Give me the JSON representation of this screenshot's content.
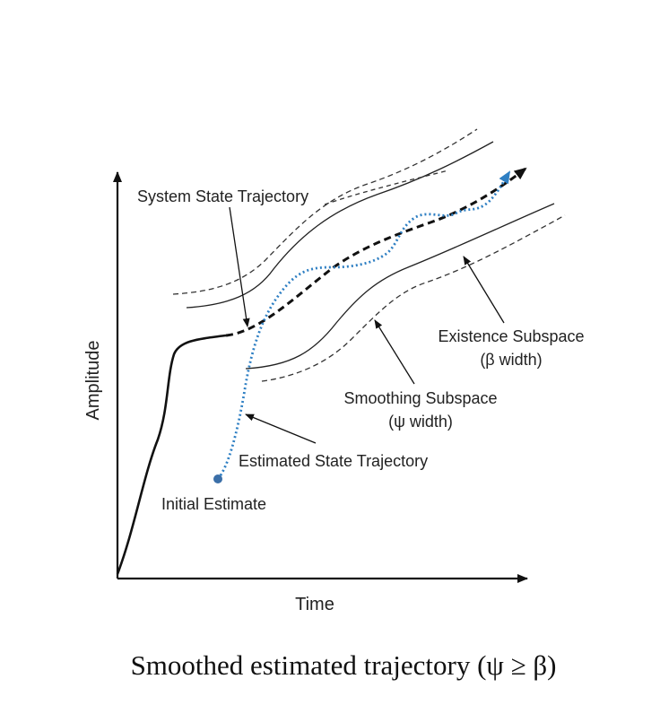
{
  "labels": {
    "system_state": "System State Trajectory",
    "existence_line1": "Existence Subspace",
    "existence_line2": "(β width)",
    "smoothing_line1": "Smoothing Subspace",
    "smoothing_line2": "(ψ width)",
    "estimated_state": "Estimated State Trajectory",
    "initial_estimate": "Initial Estimate",
    "x_axis": "Time",
    "y_axis": "Amplitude"
  },
  "caption": "Smoothed estimated trajectory (ψ ≥ β)",
  "colors": {
    "ink": "#111111",
    "estimate": "#2e7fc3",
    "initial_dot": "#3b6fa8"
  }
}
